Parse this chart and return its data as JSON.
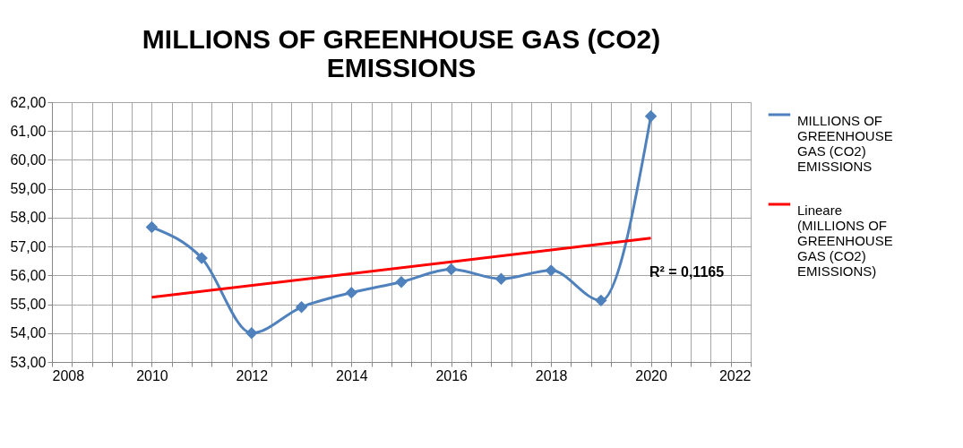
{
  "chart_data": {
    "type": "line",
    "title": "MILLIONS OF GREENHOUSE GAS (CO2) EMISSIONS",
    "x": [
      2010,
      2011,
      2012,
      2013,
      2014,
      2015,
      2016,
      2017,
      2018,
      2019,
      2020
    ],
    "series": [
      {
        "name": "MILLIONS OF GREENHOUSE GAS (CO2) EMISSIONS",
        "color": "#4f81bd",
        "marker": "diamond",
        "values": [
          57.67,
          56.6,
          54.0,
          54.9,
          55.4,
          55.77,
          56.21,
          55.88,
          56.17,
          55.13,
          61.51
        ]
      },
      {
        "name": "Lineare (MILLIONS OF GREENHOUSE GAS (CO2) EMISSIONS)",
        "color": "#ff0000",
        "marker": "none",
        "x": [
          2010,
          2020
        ],
        "values": [
          55.24,
          57.29
        ]
      }
    ],
    "annotations": [
      "R² = 0,1165"
    ],
    "xlim": [
      2008,
      2022
    ],
    "xticks": [
      2008,
      {
        "value": 2008.4,
        "label": null
      },
      {
        "value": 2008.8,
        "label": null
      },
      {
        "value": 2009.2,
        "label": null
      },
      {
        "value": 2009.6,
        "label": null
      },
      2010,
      {
        "value": 2010.4,
        "label": null
      },
      {
        "value": 2010.8,
        "label": null
      },
      {
        "value": 2011.2,
        "label": null
      },
      {
        "value": 2011.6,
        "label": null
      },
      2012,
      {
        "value": 2012.4,
        "label": null
      },
      {
        "value": 2012.8,
        "label": null
      },
      {
        "value": 2013.2,
        "label": null
      },
      {
        "value": 2013.6,
        "label": null
      },
      2014,
      {
        "value": 2014.4,
        "label": null
      },
      {
        "value": 2014.8,
        "label": null
      },
      {
        "value": 2015.2,
        "label": null
      },
      {
        "value": 2015.6,
        "label": null
      },
      2016,
      {
        "value": 2016.4,
        "label": null
      },
      {
        "value": 2016.8,
        "label": null
      },
      {
        "value": 2017.2,
        "label": null
      },
      {
        "value": 2017.6,
        "label": null
      },
      2018,
      {
        "value": 2018.4,
        "label": null
      },
      {
        "value": 2018.8,
        "label": null
      },
      {
        "value": 2019.2,
        "label": null
      },
      {
        "value": 2019.6,
        "label": null
      },
      2020,
      {
        "value": 2020.4,
        "label": null
      },
      {
        "value": 2020.8,
        "label": null
      },
      {
        "value": 2021.2,
        "label": null
      },
      {
        "value": 2021.6,
        "label": null
      },
      2022
    ],
    "ylim": [
      53,
      62
    ],
    "yticks": [
      {
        "value": 53,
        "label": "53,00"
      },
      {
        "value": 54,
        "label": "54,00"
      },
      {
        "value": 55,
        "label": "55,00"
      },
      {
        "value": 56,
        "label": "56,00"
      },
      {
        "value": 57,
        "label": "57,00"
      },
      {
        "value": 58,
        "label": "58,00"
      },
      {
        "value": 59,
        "label": "59,00"
      },
      {
        "value": 60,
        "label": "60,00"
      },
      {
        "value": 61,
        "label": "61,00"
      },
      {
        "value": 62,
        "label": "62,00"
      }
    ],
    "grid": true,
    "legend": "right",
    "line_style": "solid"
  }
}
